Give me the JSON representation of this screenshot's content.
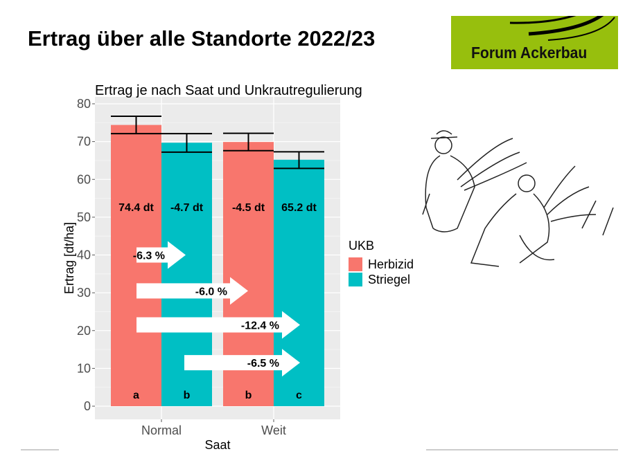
{
  "slide": {
    "title": "Ertrag über alle Standorte 2022/23"
  },
  "logo": {
    "text": "Forum Ackerbau",
    "color": "#97bf0d"
  },
  "illustration": {
    "icon": "harvest-workers-sketch"
  },
  "chart_data": {
    "type": "bar",
    "title": "Ertrag je nach Saat und Unkrautregulierung",
    "xlabel": "Saat",
    "ylabel": "Ertrag [dt/ha]",
    "ylim": [
      0,
      80
    ],
    "yticks": [
      "0",
      "10",
      "20",
      "30",
      "40",
      "50",
      "60",
      "70",
      "80"
    ],
    "categories": [
      "Normal",
      "Weit"
    ],
    "grid": true,
    "legend": {
      "title": "UKB",
      "position": "right"
    },
    "series": [
      {
        "name": "Herbizid",
        "color": "#f8766d",
        "values": [
          74.4,
          69.9
        ],
        "error_low": [
          72.1,
          67.6
        ],
        "error_high": [
          76.7,
          72.2
        ],
        "labels": [
          "74.4 dt",
          "-4.5 dt"
        ],
        "letters": [
          "a",
          "b"
        ]
      },
      {
        "name": "Striegel",
        "color": "#00bfc4",
        "values": [
          69.7,
          65.2
        ],
        "error_low": [
          67.2,
          62.9
        ],
        "error_high": [
          72.1,
          67.3
        ],
        "labels": [
          "-4.7 dt",
          "65.2 dt"
        ],
        "letters": [
          "b",
          "c"
        ]
      }
    ],
    "arrows": [
      {
        "label": "-6.3 %",
        "y": 40,
        "from": "Normal Herbizid",
        "to": "Normal Striegel"
      },
      {
        "label": "-6.0 %",
        "y": 30.5,
        "from": "Normal Herbizid",
        "to": "Weit Herbizid"
      },
      {
        "label": "-12.4 %",
        "y": 21.5,
        "from": "Normal Herbizid",
        "to": "Weit Striegel"
      },
      {
        "label": "-6.5 %",
        "y": 11.5,
        "from": "Normal Striegel",
        "to": "Weit Striegel"
      }
    ]
  }
}
